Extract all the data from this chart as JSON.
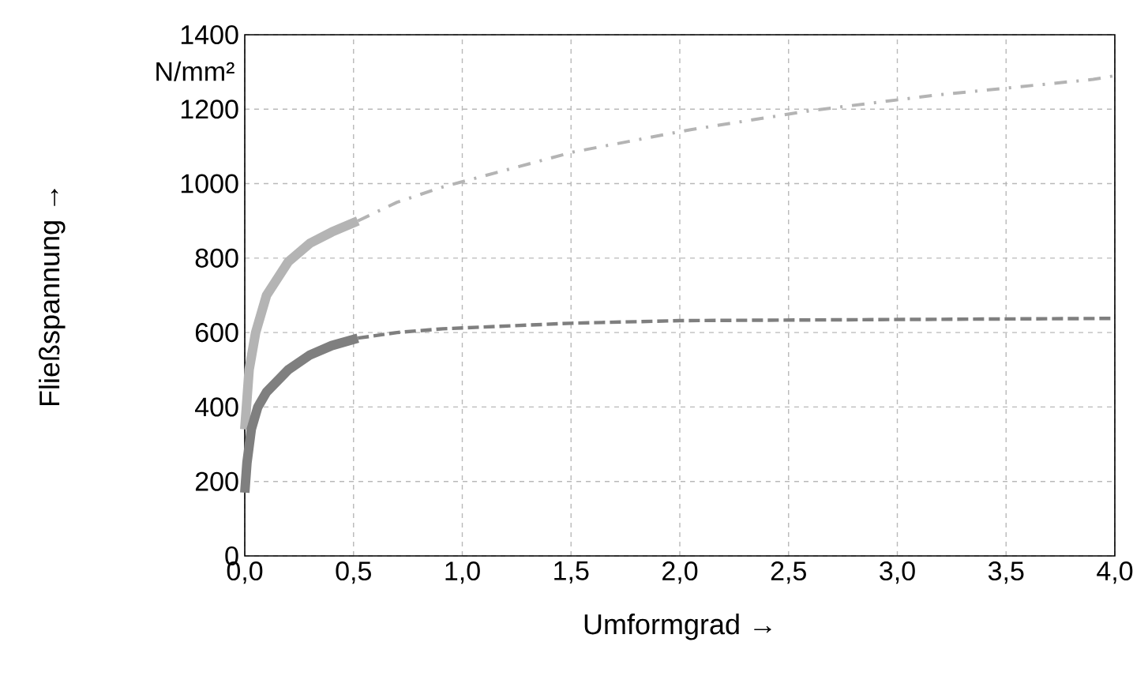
{
  "chart_data": {
    "type": "line",
    "xlabel": "Umformgrad →",
    "ylabel": "Fließspannung →",
    "annotations": [
      "N/mm²"
    ],
    "xlim": [
      0,
      4
    ],
    "ylim": [
      0,
      1400
    ],
    "xticks": [
      {
        "value": 0,
        "label": "0,0"
      },
      {
        "value": 0.5,
        "label": "0,5"
      },
      {
        "value": 1,
        "label": "1,0"
      },
      {
        "value": 1.5,
        "label": "1,5"
      },
      {
        "value": 2,
        "label": "2,0"
      },
      {
        "value": 2.5,
        "label": "2,5"
      },
      {
        "value": 3,
        "label": "3,0"
      },
      {
        "value": 3.5,
        "label": "3,5"
      },
      {
        "value": 4,
        "label": "4,0"
      }
    ],
    "yticks": [
      0,
      200,
      400,
      600,
      800,
      1000,
      1200,
      1400
    ],
    "grid": true,
    "marker": "none",
    "series": [
      {
        "color": "#b4b4b4",
        "line_style": "solid",
        "x": [
          0.0,
          0.02,
          0.05,
          0.1,
          0.2,
          0.3,
          0.4,
          0.52
        ],
        "values": [
          340,
          500,
          600,
          700,
          790,
          840,
          870,
          900
        ]
      },
      {
        "color": "#b4b4b4",
        "line_style": "dashdot",
        "x": [
          0.52,
          0.7,
          0.91,
          1.51,
          2.05,
          2.6,
          3.18,
          3.9,
          4.0
        ],
        "values": [
          900,
          950,
          991,
          1085,
          1145,
          1196,
          1238,
          1280,
          1290
        ]
      },
      {
        "color": "#7f7f7f",
        "line_style": "solid",
        "x": [
          0.0,
          0.01,
          0.03,
          0.06,
          0.1,
          0.2,
          0.3,
          0.4,
          0.52
        ],
        "values": [
          170,
          250,
          340,
          400,
          440,
          500,
          540,
          565,
          585
        ]
      },
      {
        "color": "#7f7f7f",
        "line_style": "dashed",
        "x": [
          0.52,
          0.7,
          0.91,
          1.5,
          2.0,
          3.0,
          4.0
        ],
        "values": [
          585,
          600,
          610,
          625,
          632,
          635,
          638
        ]
      }
    ]
  }
}
